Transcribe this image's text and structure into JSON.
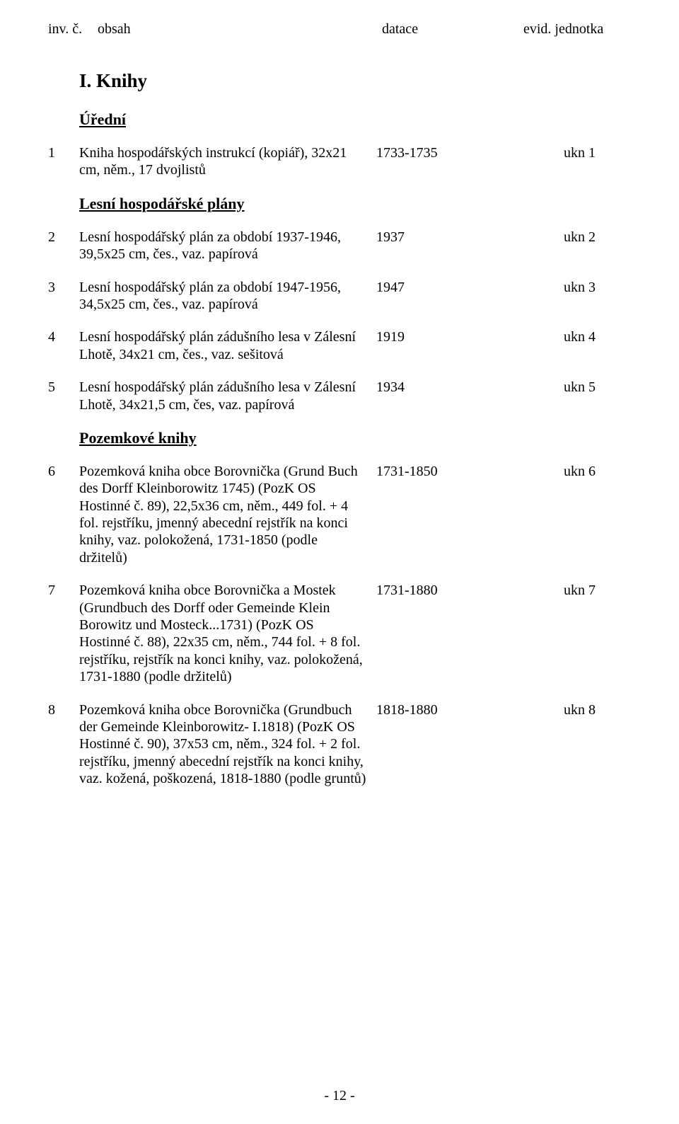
{
  "header": {
    "inv": "inv. č.",
    "obsah": "obsah",
    "datace": "datace",
    "evid": "evid. jednotka"
  },
  "section_title": "I. Knihy",
  "sub_uredni": "Úřední",
  "sub_lesni": "Lesní hospodářské plány",
  "sub_pozemkove": "Pozemkové knihy",
  "entries": [
    {
      "inv": "1",
      "desc": "Kniha hospodářských instrukcí (kopiář), 32x21 cm, něm., 17 dvojlistů",
      "date": "1733-1735",
      "unit": "ukn 1"
    },
    {
      "inv": "2",
      "desc": "Lesní hospodářský plán za období 1937-1946, 39,5x25 cm, čes., vaz. papírová",
      "date": "1937",
      "unit": "ukn 2"
    },
    {
      "inv": "3",
      "desc": "Lesní hospodářský plán za období 1947-1956, 34,5x25 cm, čes., vaz. papírová",
      "date": "1947",
      "unit": "ukn 3"
    },
    {
      "inv": "4",
      "desc": "Lesní hospodářský plán zádušního lesa v Zálesní Lhotě, 34x21 cm, čes., vaz. sešitová",
      "date": "1919",
      "unit": "ukn 4"
    },
    {
      "inv": "5",
      "desc": "Lesní hospodářský plán zádušního lesa v Zálesní Lhotě, 34x21,5 cm, čes, vaz. papírová",
      "date": "1934",
      "unit": "ukn 5"
    },
    {
      "inv": "6",
      "desc": "Pozemková kniha obce Borovnička (Grund Buch des Dorff Kleinborowitz 1745) (PozK OS Hostinné č. 89), 22,5x36 cm, něm., 449 fol. + 4 fol. rejstříku, jmenný abecední rejstřík na konci knihy, vaz. polokožená, 1731-1850 (podle držitelů)",
      "date": "1731-1850",
      "unit": "ukn 6"
    },
    {
      "inv": "7",
      "desc": "Pozemková kniha obce Borovnička a Mostek (Grundbuch des Dorff oder Gemeinde Klein Borowitz und Mosteck...1731) (PozK OS Hostinné č. 88), 22x35 cm, něm., 744 fol. + 8 fol. rejstříku, rejstřík na konci knihy, vaz. polokožená, 1731-1880 (podle držitelů)",
      "date": "1731-1880",
      "unit": "ukn 7"
    },
    {
      "inv": "8",
      "desc": "Pozemková kniha obce Borovnička (Grundbuch der Gemeinde Kleinborowitz- I.1818) (PozK OS Hostinné č. 90), 37x53 cm, něm., 324 fol. + 2 fol. rejstříku, jmenný abecední rejstřík na konci knihy, vaz. kožená, poškozená, 1818-1880 (podle gruntů)",
      "date": "1818-1880",
      "unit": "ukn 8"
    }
  ],
  "page_number": "- 12 -"
}
